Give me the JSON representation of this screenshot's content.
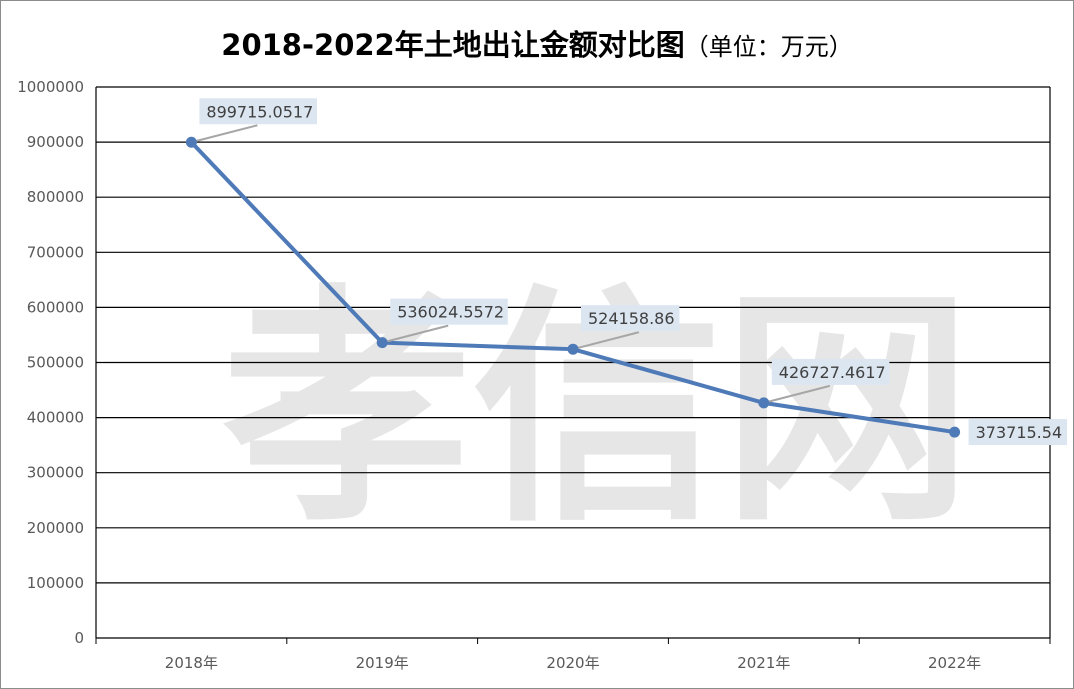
{
  "chart_data": {
    "type": "line",
    "title": "2018-2022年土地出让金额对比图",
    "subtitle": "（单位：万元）",
    "categories": [
      "2018年",
      "2019年",
      "2020年",
      "2021年",
      "2022年"
    ],
    "series": [
      {
        "values": [
          899715.0517,
          536024.5572,
          524158.86,
          426727.4617,
          373715.54
        ],
        "labels": [
          "899715.0517",
          "536024.5572",
          "524158.86",
          "426727.4617",
          "373715.54"
        ]
      }
    ],
    "ylim": [
      0,
      1000000
    ],
    "yticks": [
      "0",
      "100000",
      "200000",
      "300000",
      "400000",
      "500000",
      "600000",
      "700000",
      "800000",
      "900000",
      "1000000"
    ],
    "grid": true,
    "legend": "none",
    "colors": {
      "line": "#4f7ab8",
      "grid": "#000000",
      "label_bg": "#dce6f1"
    },
    "watermark": "孝信网"
  }
}
